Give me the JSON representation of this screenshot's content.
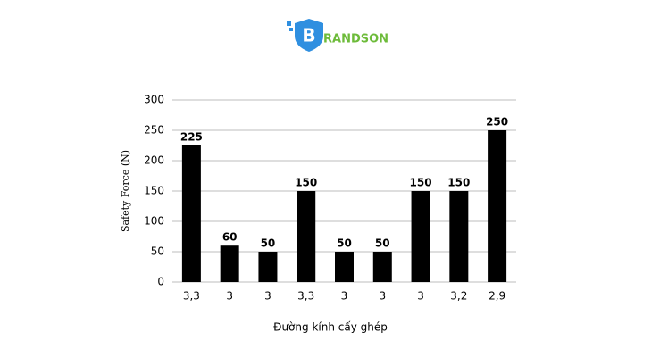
{
  "logo": {
    "icon_letter": "B",
    "text": "RANDSON"
  },
  "chart_data": {
    "type": "bar",
    "y_label": "Safety Force (N)",
    "x_label": "Đường kính cấy ghép",
    "categories": [
      "3,3",
      "3",
      "3",
      "3,3",
      "3",
      "3",
      "3",
      "3,2",
      "2,9"
    ],
    "values": [
      225,
      60,
      50,
      150,
      50,
      50,
      150,
      150,
      250
    ],
    "color": "#000000",
    "ylim": [
      0,
      300
    ],
    "yticks": [
      0,
      50,
      100,
      150,
      200,
      250,
      300
    ],
    "grid": true
  }
}
